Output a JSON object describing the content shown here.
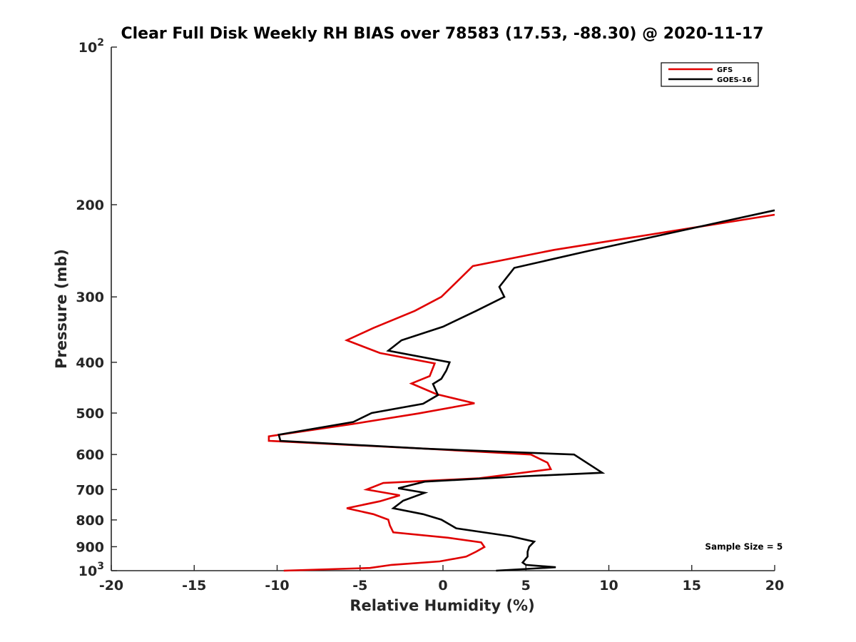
{
  "chart_data": {
    "type": "line",
    "title": "Clear Full Disk Weekly RH BIAS over 78583 (17.53, -88.30) @ 2020-11-17",
    "xlabel": "Relative Humidity (%)",
    "ylabel": "Pressure (mb)",
    "xlim": [
      -20,
      20
    ],
    "ylim": [
      100,
      1000
    ],
    "y_scale": "log",
    "y_reversed": true,
    "grid": false,
    "legend_location": "top-right",
    "x_ticks": [
      {
        "value": -20,
        "label": "-20"
      },
      {
        "value": -15,
        "label": "-15"
      },
      {
        "value": -10,
        "label": "-10"
      },
      {
        "value": -5,
        "label": "-5"
      },
      {
        "value": 0,
        "label": "0"
      },
      {
        "value": 5,
        "label": "5"
      },
      {
        "value": 10,
        "label": "10"
      },
      {
        "value": 15,
        "label": "15"
      },
      {
        "value": 20,
        "label": "20"
      }
    ],
    "y_ticks": [
      {
        "value": 100,
        "base": "10",
        "exp": "2"
      },
      {
        "value": 200,
        "label": "200"
      },
      {
        "value": 300,
        "label": "300"
      },
      {
        "value": 400,
        "label": "400"
      },
      {
        "value": 500,
        "label": "500"
      },
      {
        "value": 600,
        "label": "600"
      },
      {
        "value": 700,
        "label": "700"
      },
      {
        "value": 800,
        "label": "800"
      },
      {
        "value": 900,
        "label": "900"
      },
      {
        "value": 1000,
        "base": "10",
        "exp": "3"
      }
    ],
    "series": [
      {
        "name": "GFS",
        "color": "#e00000",
        "points": [
          [
            20.0,
            209
          ],
          [
            6.7,
            244
          ],
          [
            1.8,
            262
          ],
          [
            -0.1,
            300
          ],
          [
            -1.7,
            319
          ],
          [
            -4.2,
            344
          ],
          [
            -5.8,
            363
          ],
          [
            -3.8,
            384
          ],
          [
            -0.5,
            402
          ],
          [
            -0.8,
            425
          ],
          [
            -1.9,
            439
          ],
          [
            -0.4,
            460
          ],
          [
            1.9,
            479
          ],
          [
            -1.5,
            501
          ],
          [
            -5.5,
            525
          ],
          [
            -10.5,
            554
          ],
          [
            -10.5,
            565
          ],
          [
            -1.0,
            585
          ],
          [
            5.3,
            600
          ],
          [
            6.3,
            622
          ],
          [
            6.5,
            640
          ],
          [
            2.2,
            666
          ],
          [
            -3.6,
            680
          ],
          [
            -4.6,
            700
          ],
          [
            -2.6,
            718
          ],
          [
            -3.8,
            737
          ],
          [
            -5.8,
            760
          ],
          [
            -4.2,
            780
          ],
          [
            -3.3,
            799
          ],
          [
            -3.2,
            820
          ],
          [
            -3.0,
            845
          ],
          [
            0.3,
            865
          ],
          [
            2.3,
            883
          ],
          [
            2.5,
            901
          ],
          [
            2.0,
            920
          ],
          [
            1.4,
            940
          ],
          [
            -0.2,
            960
          ],
          [
            -3.1,
            975
          ],
          [
            -4.4,
            988
          ],
          [
            -9.6,
            1000
          ]
        ]
      },
      {
        "name": "GOES-16",
        "color": "#000000",
        "points": [
          [
            20.0,
            205
          ],
          [
            8.8,
            245
          ],
          [
            4.3,
            264
          ],
          [
            3.4,
            287
          ],
          [
            3.7,
            300
          ],
          [
            2.0,
            319
          ],
          [
            0.0,
            342
          ],
          [
            -2.5,
            363
          ],
          [
            -3.3,
            380
          ],
          [
            0.4,
            400
          ],
          [
            0.2,
            415
          ],
          [
            -0.1,
            430
          ],
          [
            -0.6,
            440
          ],
          [
            -0.3,
            462
          ],
          [
            -1.2,
            480
          ],
          [
            -4.3,
            500
          ],
          [
            -5.4,
            520
          ],
          [
            -9.9,
            550
          ],
          [
            -9.8,
            565
          ],
          [
            -1.0,
            585
          ],
          [
            7.9,
            600
          ],
          [
            9.6,
            650
          ],
          [
            5.0,
            660
          ],
          [
            -1.1,
            676
          ],
          [
            -2.7,
            696
          ],
          [
            -1.1,
            710
          ],
          [
            -2.4,
            735
          ],
          [
            -3.0,
            760
          ],
          [
            -1.2,
            780
          ],
          [
            -0.1,
            799
          ],
          [
            0.8,
            830
          ],
          [
            4.1,
            860
          ],
          [
            5.5,
            880
          ],
          [
            5.2,
            900
          ],
          [
            5.1,
            920
          ],
          [
            5.1,
            940
          ],
          [
            4.8,
            965
          ],
          [
            5.0,
            975
          ],
          [
            6.8,
            985
          ],
          [
            3.2,
            1000
          ]
        ]
      }
    ],
    "annotations": [
      {
        "text": "Sample Size = 5",
        "x": 15.8,
        "y": 900
      }
    ]
  }
}
